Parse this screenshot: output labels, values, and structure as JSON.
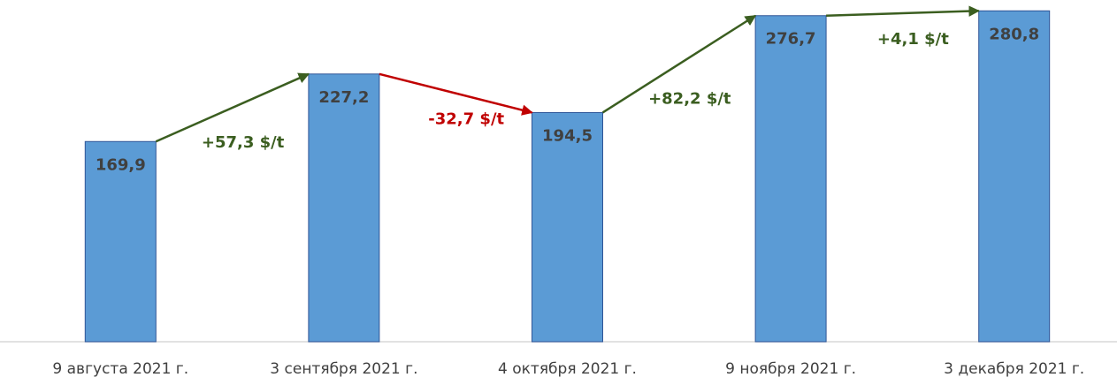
{
  "chart_data": {
    "type": "bar",
    "categories": [
      "9 августа 2021 г.",
      "3 сентября 2021 г.",
      "4 октября 2021 г.",
      "9 ноября 2021 г.",
      "3 декабря 2021 г."
    ],
    "values": [
      169.9,
      227.2,
      194.5,
      276.7,
      280.8
    ],
    "value_labels": [
      "169,9",
      "227,2",
      "194,5",
      "276,7",
      "280,8"
    ],
    "color": "#5b9bd5",
    "ylim": [
      0,
      290
    ],
    "annotations": [
      {
        "text": "+57,3 $/t",
        "color": "#3b5e20"
      },
      {
        "text": "-32,7 $/t",
        "color": "#c00000"
      },
      {
        "text": "+82,2 $/t",
        "color": "#3b5e20"
      },
      {
        "text": "+4,1 $/t",
        "color": "#3b5e20"
      }
    ]
  }
}
